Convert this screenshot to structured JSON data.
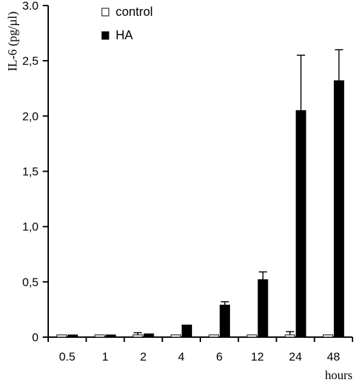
{
  "chart_data": {
    "type": "bar",
    "ylabel": "IL-6 (pg/µl)",
    "xlabel": "hours",
    "ylim": [
      0,
      3.0
    ],
    "y_ticks": [
      {
        "value": 0,
        "label": "0"
      },
      {
        "value": 0.5,
        "label": "0,5"
      },
      {
        "value": 1.0,
        "label": "1,0"
      },
      {
        "value": 1.5,
        "label": "1,5"
      },
      {
        "value": 2.0,
        "label": "2,0"
      },
      {
        "value": 2.5,
        "label": "2,5"
      },
      {
        "value": 3.0,
        "label": "3.0"
      }
    ],
    "categories": [
      "0.5",
      "1",
      "2",
      "4",
      "6",
      "12",
      "24",
      "48"
    ],
    "legend_position": "top-center",
    "grid": false,
    "series": [
      {
        "name": "control",
        "fill": "#ffffff",
        "values": [
          0.02,
          0.02,
          0.02,
          0.02,
          0.02,
          0.02,
          0.02,
          0.02
        ],
        "errors": [
          0.0,
          0.0,
          0.02,
          0.0,
          0.0,
          0.0,
          0.03,
          0.0
        ]
      },
      {
        "name": "HA",
        "fill": "#000000",
        "values": [
          0.02,
          0.02,
          0.03,
          0.11,
          0.29,
          0.52,
          2.05,
          2.32
        ],
        "errors": [
          0.0,
          0.0,
          0.0,
          0.0,
          0.03,
          0.07,
          0.5,
          0.28
        ]
      }
    ]
  }
}
